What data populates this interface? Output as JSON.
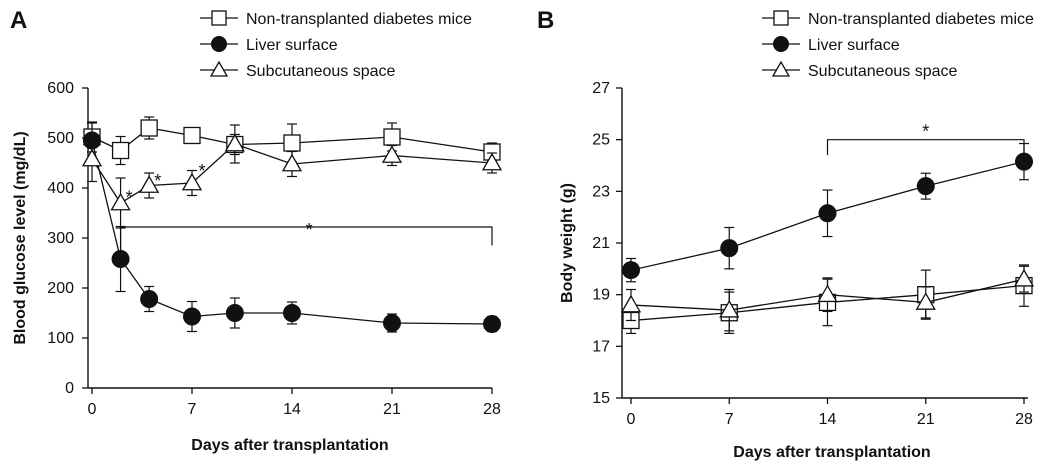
{
  "chart_data": [
    {
      "type": "line",
      "panel_label": "A",
      "xlabel": "Days after transplantation",
      "ylabel": "Blood  glucose level (mg/dL)",
      "xlim": [
        0,
        28
      ],
      "ylim": [
        0,
        600
      ],
      "xticks": [
        "0",
        "7",
        "14",
        "21",
        "28"
      ],
      "xtick_values": [
        0,
        7,
        14,
        21,
        28
      ],
      "yticks": [
        "0",
        "100",
        "200",
        "300",
        "400",
        "500",
        "600"
      ],
      "ytick_values": [
        0,
        100,
        200,
        300,
        400,
        500,
        600
      ],
      "grid": false,
      "legend_position": "top",
      "series": [
        {
          "name": "Non-transplanted diabetes mice",
          "marker": "square-open",
          "x": [
            0,
            2,
            4,
            7,
            10,
            14,
            21,
            28
          ],
          "y": [
            502,
            475,
            520,
            505,
            487,
            490,
            502,
            472
          ],
          "err": [
            30,
            28,
            22,
            15,
            20,
            38,
            28,
            18
          ]
        },
        {
          "name": "Liver surface",
          "marker": "circle-filled",
          "x": [
            0,
            2,
            4,
            7,
            10,
            14,
            21,
            28
          ],
          "y": [
            495,
            258,
            178,
            143,
            150,
            150,
            130,
            128
          ],
          "err": [
            35,
            65,
            25,
            30,
            30,
            22,
            18,
            15
          ]
        },
        {
          "name": "Subcutaneous space",
          "marker": "triangle-open",
          "x": [
            0,
            2,
            4,
            7,
            10,
            14,
            21,
            28
          ],
          "y": [
            458,
            370,
            405,
            410,
            488,
            448,
            465,
            450
          ],
          "err": [
            45,
            50,
            25,
            25,
            38,
            25,
            20,
            20
          ]
        }
      ],
      "annotations": [
        {
          "text": "*",
          "x": 2.6,
          "y": 385
        },
        {
          "text": "*",
          "x": 4.6,
          "y": 418
        },
        {
          "text": "*",
          "x": 7.7,
          "y": 438
        },
        {
          "text": "*",
          "x": 15.2,
          "y": 320
        }
      ],
      "bracket": {
        "x1": 2,
        "x2": 28,
        "y": 322,
        "left_drop": 250,
        "right_drop": 285
      }
    },
    {
      "type": "line",
      "panel_label": "B",
      "xlabel": "Days after transplantation",
      "ylabel": "Body weight (g)",
      "xlim": [
        0,
        28
      ],
      "ylim": [
        15,
        27
      ],
      "xticks": [
        "0",
        "7",
        "14",
        "21",
        "28"
      ],
      "xtick_values": [
        0,
        7,
        14,
        21,
        28
      ],
      "yticks": [
        "15",
        "17",
        "19",
        "21",
        "23",
        "25",
        "27"
      ],
      "ytick_values": [
        15,
        17,
        19,
        21,
        23,
        25,
        27
      ],
      "grid": false,
      "legend_position": "top",
      "series": [
        {
          "name": "Non-transplanted diabetes mice",
          "marker": "square-open",
          "x": [
            0,
            7,
            14,
            21,
            28
          ],
          "y": [
            18.0,
            18.3,
            18.7,
            19.0,
            19.35
          ],
          "err": [
            0.5,
            0.8,
            0.9,
            0.95,
            0.8
          ]
        },
        {
          "name": "Liver surface",
          "marker": "circle-filled",
          "x": [
            0,
            7,
            14,
            21,
            28
          ],
          "y": [
            19.95,
            20.8,
            22.15,
            23.2,
            24.15
          ],
          "err": [
            0.45,
            0.8,
            0.9,
            0.5,
            0.7
          ]
        },
        {
          "name": "Subcutaneous space",
          "marker": "triangle-open",
          "x": [
            0,
            7,
            14,
            21,
            28
          ],
          "y": [
            18.6,
            18.4,
            19.0,
            18.7,
            19.6
          ],
          "err": [
            0.6,
            0.8,
            0.65,
            0.6,
            0.5
          ]
        }
      ],
      "annotations": [
        {
          "text": "*",
          "x": 21,
          "y": 25.4
        }
      ],
      "bracket": {
        "x1": 14,
        "x2": 28,
        "y": 25.0,
        "left_drop": 24.4,
        "right_drop": 24.4
      }
    }
  ]
}
